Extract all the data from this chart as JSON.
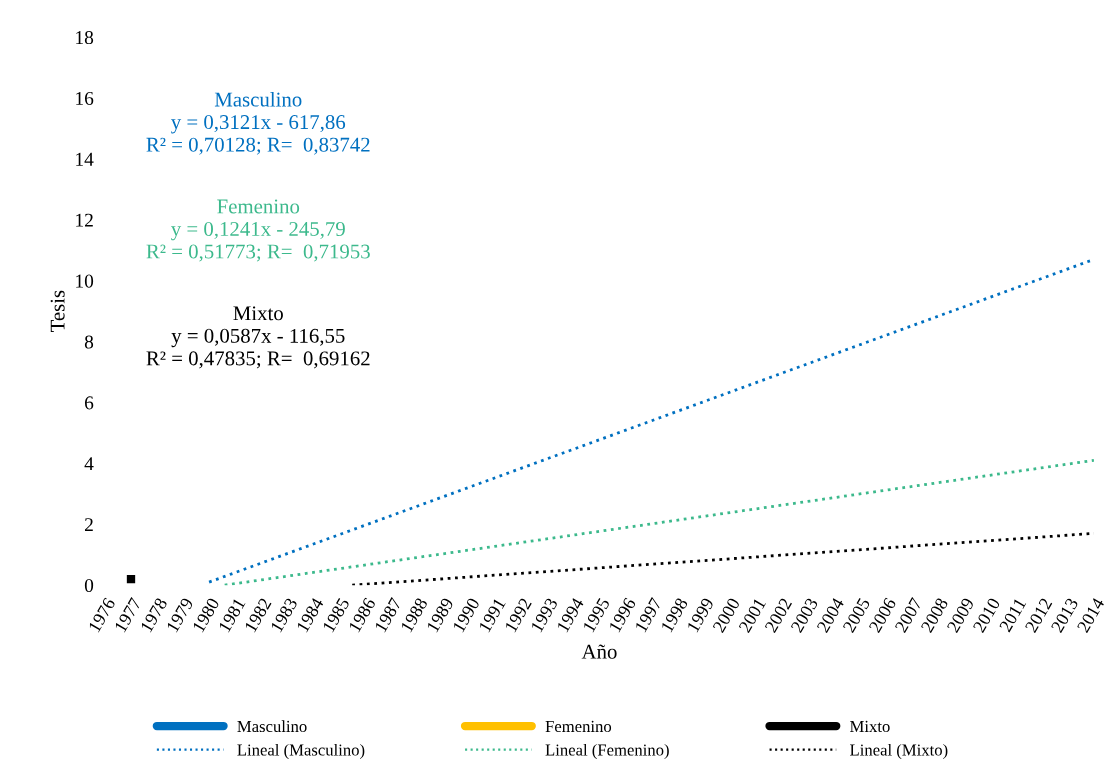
{
  "chart_data": {
    "type": "line",
    "xlabel": "Año",
    "ylabel": "Tesis",
    "xlim": [
      1976,
      2014
    ],
    "xticks": [
      1976,
      1977,
      1978,
      1979,
      1980,
      1981,
      1982,
      1983,
      1984,
      1985,
      1986,
      1987,
      1988,
      1989,
      1990,
      1991,
      1992,
      1993,
      1994,
      1995,
      1996,
      1997,
      1998,
      1999,
      2000,
      2001,
      2002,
      2003,
      2004,
      2005,
      2006,
      2007,
      2008,
      2009,
      2010,
      2011,
      2012,
      2013,
      2014
    ],
    "series": [
      {
        "name": "Masculino",
        "color": "#0070c0"
      },
      {
        "name": "Lineal (Masculino)",
        "color": "#0070c0",
        "line_style": "dotted",
        "x": [
          1980,
          2014
        ],
        "values": [
          0.1,
          10.7
        ]
      },
      {
        "name": "Femenino",
        "color": "#ffc000"
      },
      {
        "name": "Lineal (Femenino)",
        "color": "#3cb98c",
        "line_style": "dotted",
        "x": [
          1980.6,
          2014
        ],
        "values": [
          0.0,
          4.1
        ]
      },
      {
        "name": "Mixto",
        "color": "#000000",
        "marker": "square",
        "x": [
          1977
        ],
        "values": [
          0.2
        ]
      },
      {
        "name": "Lineal (Mixto)",
        "color": "#000000",
        "line_style": "dotted",
        "x": [
          1985.5,
          2014
        ],
        "values": [
          0.0,
          1.7
        ]
      }
    ],
    "annotations": [
      "Masculino\ny = 0,3121x - 617,86\nR² = 0,70128; R=  0,83742",
      "Femenino\ny = 0,1241x - 245,79\nR² = 0,51773; R=  0,71953",
      "Mixto\ny = 0,0587x - 116,55\nR² = 0,47835; R=  0,69162"
    ],
    "ylim": [
      0,
      18
    ],
    "yticks": [
      0,
      2,
      4,
      6,
      8,
      10,
      12,
      14,
      16,
      18
    ],
    "grid": false,
    "legend": "bottom"
  }
}
